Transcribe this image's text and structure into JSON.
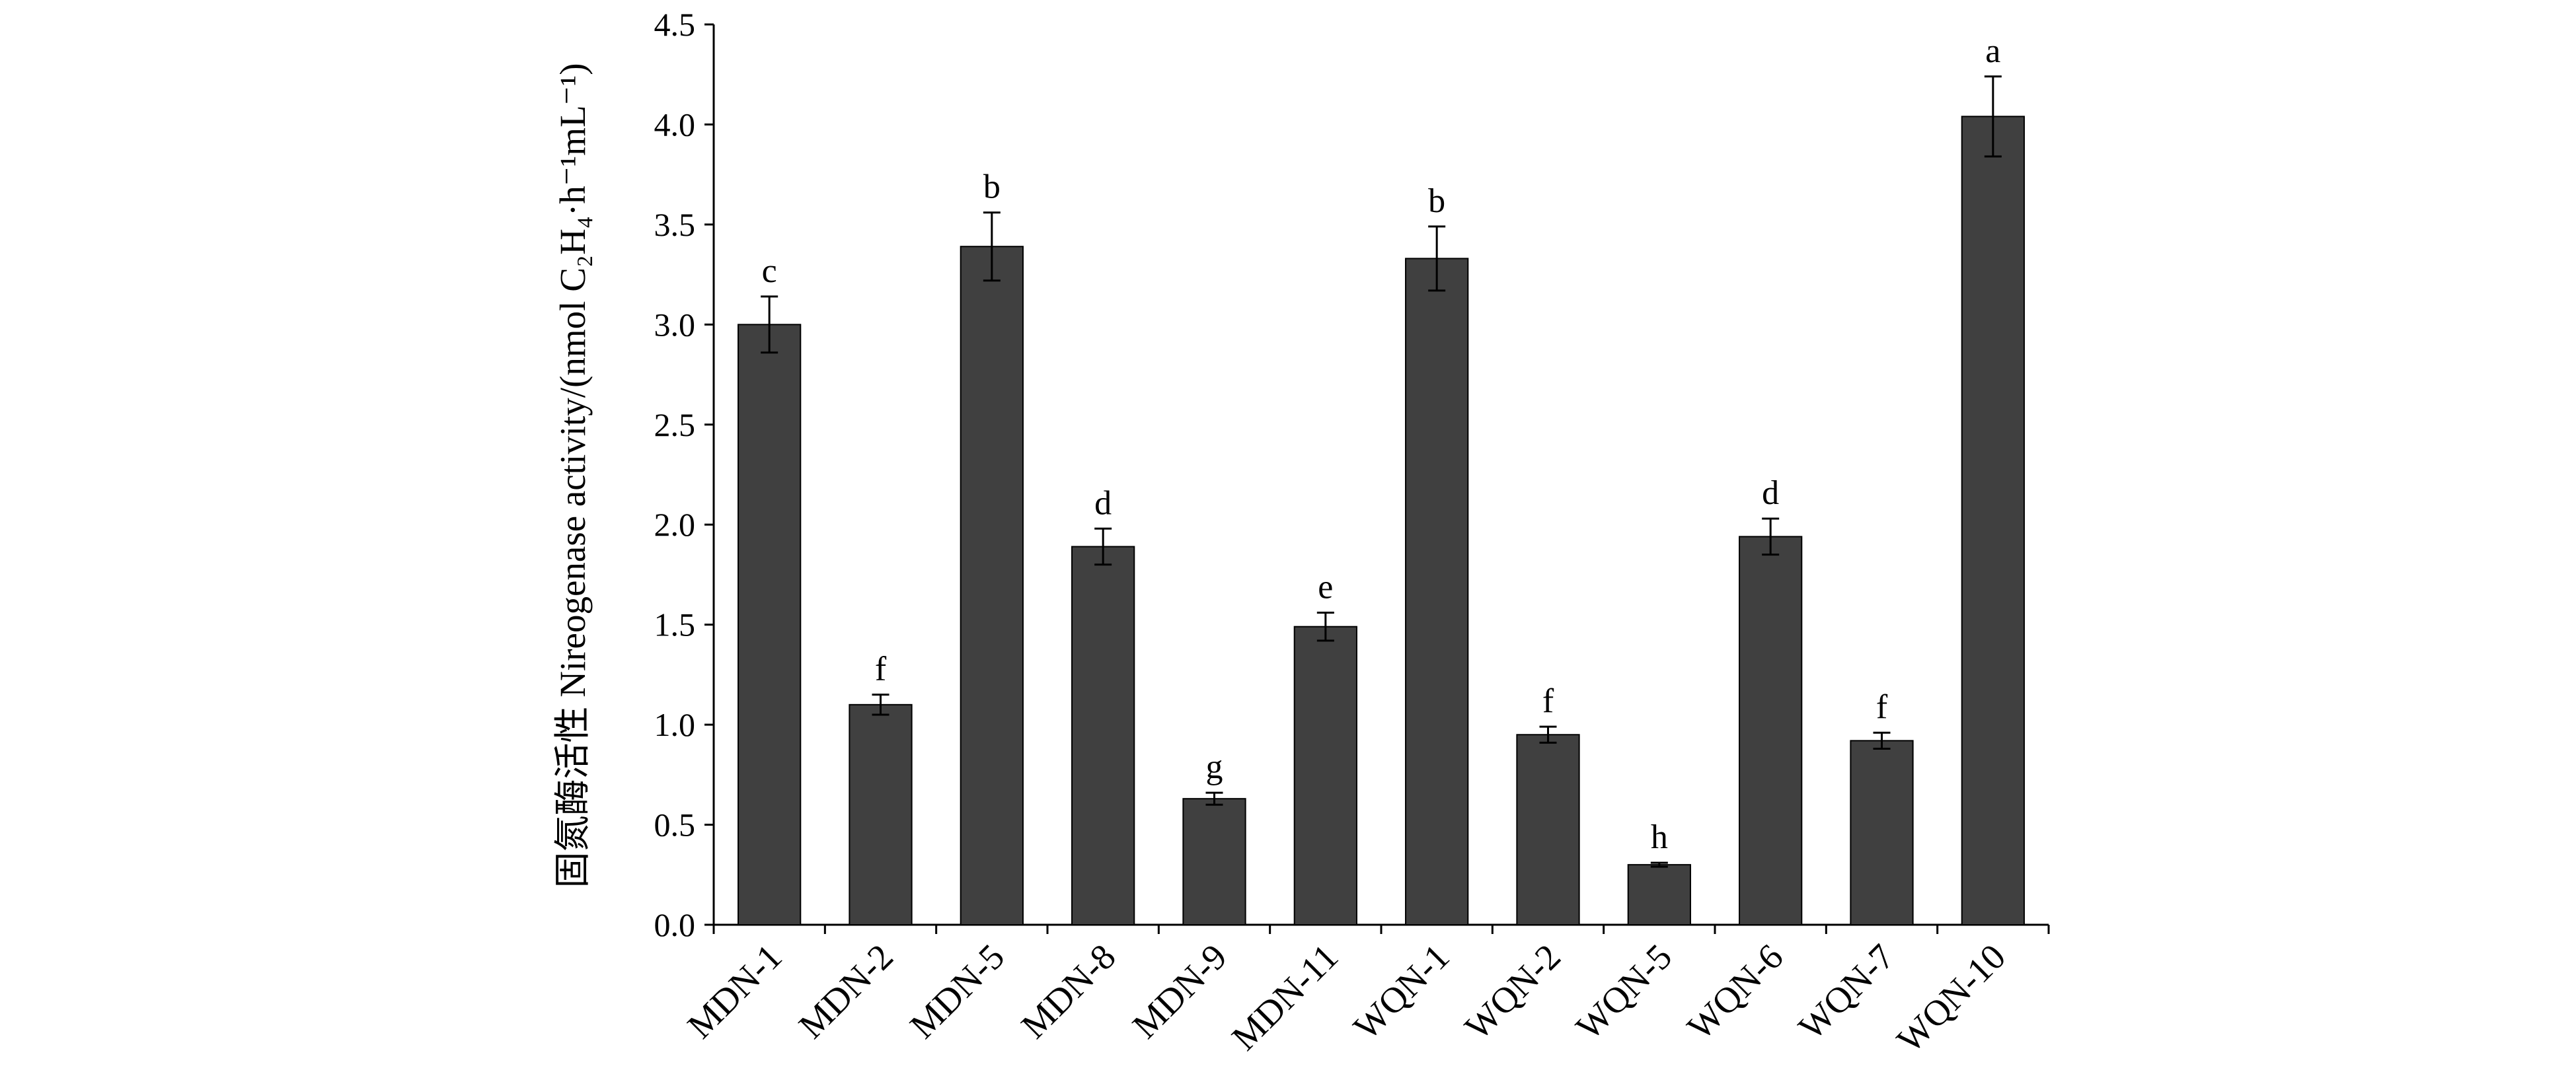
{
  "chart_data": {
    "type": "bar",
    "y_label": "固氮酶活性 Nireogenase activity/(nmol C₂H₄·h⁻¹mL⁻¹)",
    "categories": [
      "MDN-1",
      "MDN-2",
      "MDN-5",
      "MDN-8",
      "MDN-9",
      "MDN-11",
      "WQN-1",
      "WQN-2",
      "WQN-5",
      "WQN-6",
      "WQN-7",
      "WQN-10"
    ],
    "values": [
      3.0,
      1.1,
      3.39,
      1.89,
      0.63,
      1.49,
      3.33,
      0.95,
      0.3,
      1.94,
      0.92,
      4.04
    ],
    "errors": [
      0.14,
      0.05,
      0.17,
      0.09,
      0.03,
      0.07,
      0.16,
      0.04,
      0.01,
      0.09,
      0.04,
      0.2
    ],
    "letters": [
      "c",
      "f",
      "b",
      "d",
      "g",
      "e",
      "b",
      "f",
      "h",
      "d",
      "f",
      "a"
    ],
    "color": "#404040",
    "ylim": [
      0,
      4.5
    ],
    "yticks": [
      {
        "value": 0,
        "label": "0.0"
      },
      0.5,
      {
        "value": 1,
        "label": "1.0"
      },
      1.5,
      {
        "value": 2,
        "label": "2.0"
      },
      2.5,
      {
        "value": 3,
        "label": "3.0"
      },
      3.5,
      {
        "value": 4,
        "label": "4.0"
      },
      4.5
    ]
  }
}
